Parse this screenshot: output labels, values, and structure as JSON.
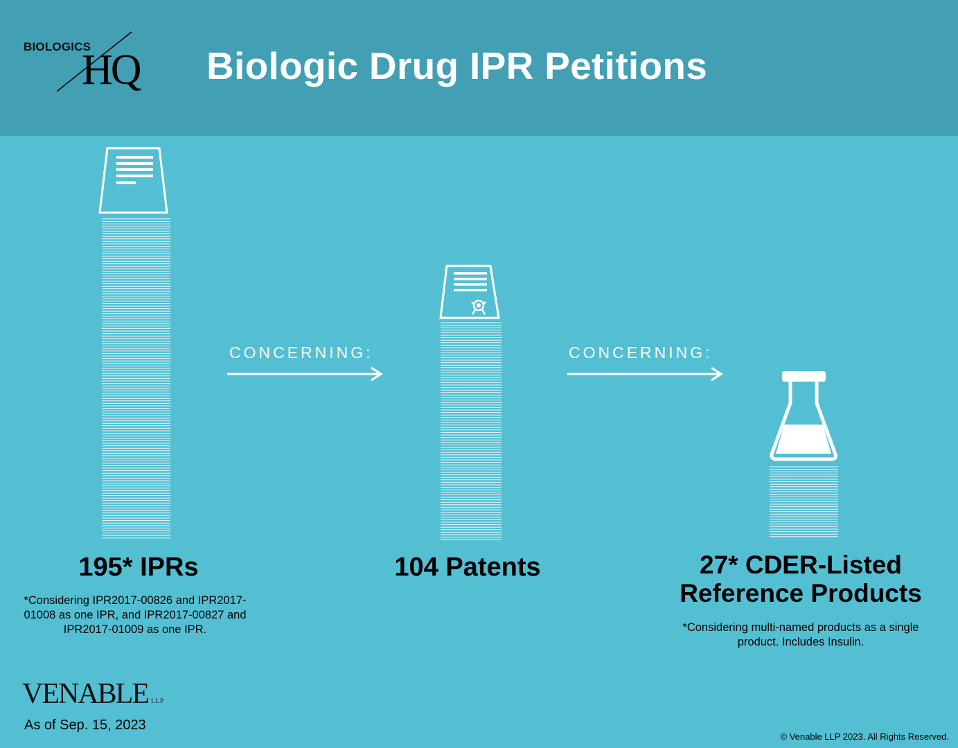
{
  "header": {
    "title": "Biologic Drug IPR Petitions",
    "logo": {
      "top_text": "BIOLOGICS",
      "main_text": "HQ"
    }
  },
  "columns": [
    {
      "stat": "195* IPRs",
      "note": "*Considering IPR2017-00826 and IPR2017-01008 as one IPR, and IPR2017-00827 and IPR2017-01009 as one IPR.",
      "icon": "document-icon"
    },
    {
      "stat": "104 Patents",
      "note": "",
      "icon": "certificate-icon"
    },
    {
      "stat_line1": "27* CDER-Listed",
      "stat_line2": "Reference Products",
      "note": "*Considering multi-named products as a single product.  Includes Insulin.",
      "icon": "flask-icon"
    }
  ],
  "connectors": [
    {
      "label": "CONCERNING:"
    },
    {
      "label": "CONCERNING:"
    }
  ],
  "footer": {
    "brand": "VENABLE",
    "brand_suffix": "LLP",
    "as_of": "As of Sep. 15, 2023",
    "copyright": "© Venable LLP 2023. All Rights Reserved."
  },
  "colors": {
    "background": "#54bfd3",
    "header": "#429fb4",
    "accent": "#ffffff"
  }
}
